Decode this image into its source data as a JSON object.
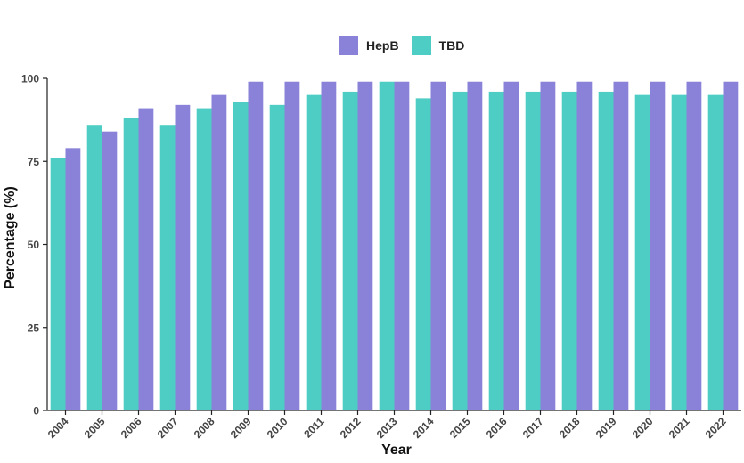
{
  "chart_data": {
    "type": "bar",
    "title": "",
    "xlabel": "Year",
    "ylabel": "Percentage (%)",
    "ylim": [
      0,
      100
    ],
    "yticks": [
      0,
      25,
      50,
      75,
      100
    ],
    "legend_position": "top-center",
    "grid": false,
    "categories": [
      "2004",
      "2005",
      "2006",
      "2007",
      "2008",
      "2009",
      "2010",
      "2011",
      "2012",
      "2013",
      "2014",
      "2015",
      "2016",
      "2017",
      "2018",
      "2019",
      "2020",
      "2021",
      "2022"
    ],
    "series": [
      {
        "name": "TBD",
        "color": "#4ecdc4",
        "values": [
          76,
          86,
          88,
          86,
          91,
          93,
          92,
          95,
          96,
          99,
          94,
          96,
          96,
          96,
          96,
          96,
          95,
          95,
          95
        ]
      },
      {
        "name": "HepB",
        "color": "#8a82d8",
        "values": [
          79,
          84,
          91,
          92,
          95,
          99,
          99,
          99,
          99,
          99,
          99,
          99,
          99,
          99,
          99,
          99,
          99,
          99,
          99
        ]
      }
    ],
    "legend_order": [
      "HepB",
      "TBD"
    ]
  }
}
